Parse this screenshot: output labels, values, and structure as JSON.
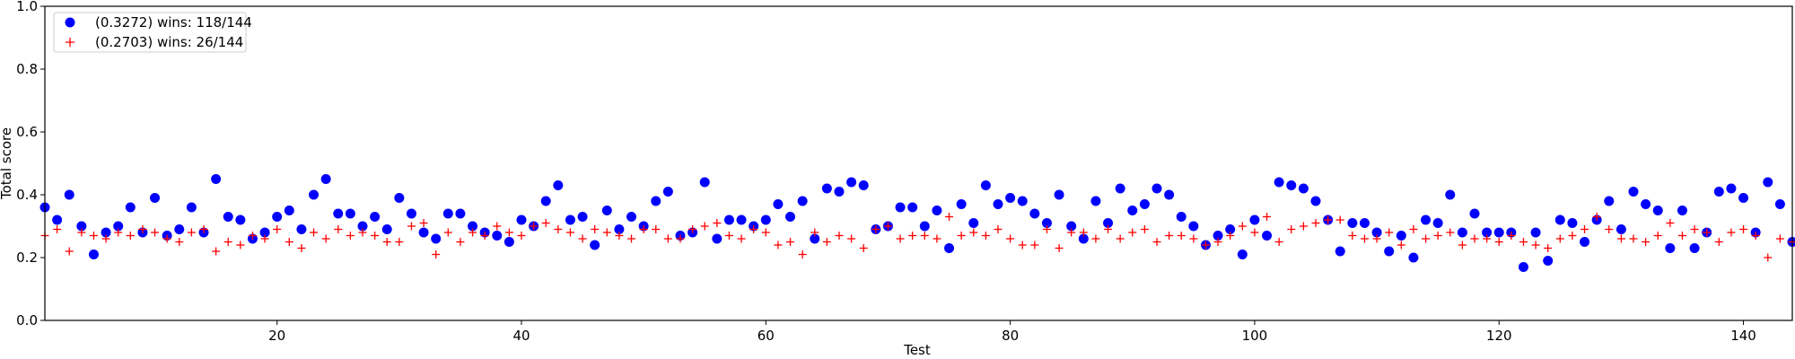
{
  "chart_data": {
    "type": "scatter",
    "xlabel": "Test",
    "ylabel": "Total score",
    "xlim": [
      1,
      144
    ],
    "ylim": [
      0.0,
      1.0
    ],
    "xticks": [
      20,
      40,
      60,
      80,
      100,
      120,
      140
    ],
    "yticks": [
      0.0,
      0.2,
      0.4,
      0.6,
      0.8,
      1.0
    ],
    "grid": false,
    "legend_position": "top-left",
    "series": [
      {
        "name": "(0.3272) wins: 118/144",
        "marker": "circle",
        "color": "#0000ff",
        "values": [
          0.36,
          0.32,
          0.4,
          0.3,
          0.21,
          0.28,
          0.3,
          0.36,
          0.28,
          0.39,
          0.27,
          0.29,
          0.36,
          0.28,
          0.45,
          0.33,
          0.32,
          0.26,
          0.28,
          0.33,
          0.35,
          0.29,
          0.4,
          0.45,
          0.34,
          0.34,
          0.3,
          0.33,
          0.29,
          0.39,
          0.34,
          0.28,
          0.26,
          0.34,
          0.34,
          0.3,
          0.28,
          0.27,
          0.25,
          0.32,
          0.3,
          0.38,
          0.43,
          0.32,
          0.33,
          0.24,
          0.35,
          0.29,
          0.33,
          0.3,
          0.38,
          0.41,
          0.27,
          0.28,
          0.44,
          0.26,
          0.32,
          0.32,
          0.3,
          0.32,
          0.37,
          0.33,
          0.38,
          0.26,
          0.42,
          0.41,
          0.44,
          0.43,
          0.29,
          0.3,
          0.36,
          0.36,
          0.3,
          0.35,
          0.23,
          0.37,
          0.31,
          0.43,
          0.37,
          0.39,
          0.38,
          0.34,
          0.31,
          0.4,
          0.3,
          0.26,
          0.38,
          0.31,
          0.42,
          0.35,
          0.37,
          0.42,
          0.4,
          0.33,
          0.3,
          0.24,
          0.27,
          0.29,
          0.21,
          0.32,
          0.27,
          0.44,
          0.43,
          0.42,
          0.38,
          0.32,
          0.22,
          0.31,
          0.31,
          0.28,
          0.22,
          0.27,
          0.2,
          0.32,
          0.31,
          0.4,
          0.28,
          0.34,
          0.28,
          0.28,
          0.28,
          0.17,
          0.28,
          0.19,
          0.32,
          0.31,
          0.25,
          0.32,
          0.38,
          0.29,
          0.41,
          0.37,
          0.35,
          0.23,
          0.35,
          0.23,
          0.28,
          0.41,
          0.42,
          0.39,
          0.28,
          0.44,
          0.37,
          0.25
        ]
      },
      {
        "name": "(0.2703) wins: 26/144",
        "marker": "plus",
        "color": "#ff0000",
        "values": [
          0.27,
          0.29,
          0.22,
          0.28,
          0.27,
          0.26,
          0.28,
          0.27,
          0.29,
          0.28,
          0.26,
          0.25,
          0.28,
          0.29,
          0.22,
          0.25,
          0.24,
          0.27,
          0.26,
          0.29,
          0.25,
          0.23,
          0.28,
          0.26,
          0.29,
          0.27,
          0.28,
          0.27,
          0.25,
          0.25,
          0.3,
          0.31,
          0.21,
          0.28,
          0.25,
          0.28,
          0.27,
          0.3,
          0.28,
          0.27,
          0.3,
          0.31,
          0.29,
          0.28,
          0.26,
          0.29,
          0.28,
          0.27,
          0.26,
          0.29,
          0.29,
          0.26,
          0.26,
          0.29,
          0.3,
          0.31,
          0.27,
          0.26,
          0.29,
          0.28,
          0.24,
          0.25,
          0.21,
          0.28,
          0.25,
          0.27,
          0.26,
          0.23,
          0.29,
          0.3,
          0.26,
          0.27,
          0.27,
          0.26,
          0.33,
          0.27,
          0.28,
          0.27,
          0.29,
          0.26,
          0.24,
          0.24,
          0.29,
          0.23,
          0.28,
          0.28,
          0.26,
          0.29,
          0.26,
          0.28,
          0.29,
          0.25,
          0.27,
          0.27,
          0.26,
          0.24,
          0.25,
          0.27,
          0.3,
          0.28,
          0.33,
          0.25,
          0.29,
          0.3,
          0.31,
          0.32,
          0.32,
          0.27,
          0.26,
          0.26,
          0.28,
          0.24,
          0.29,
          0.26,
          0.27,
          0.28,
          0.24,
          0.26,
          0.26,
          0.25,
          0.27,
          0.25,
          0.24,
          0.23,
          0.26,
          0.27,
          0.29,
          0.33,
          0.29,
          0.26,
          0.26,
          0.25,
          0.27,
          0.31,
          0.27,
          0.29,
          0.28,
          0.25,
          0.28,
          0.29,
          0.27,
          0.2,
          0.26,
          0.25
        ]
      }
    ]
  }
}
